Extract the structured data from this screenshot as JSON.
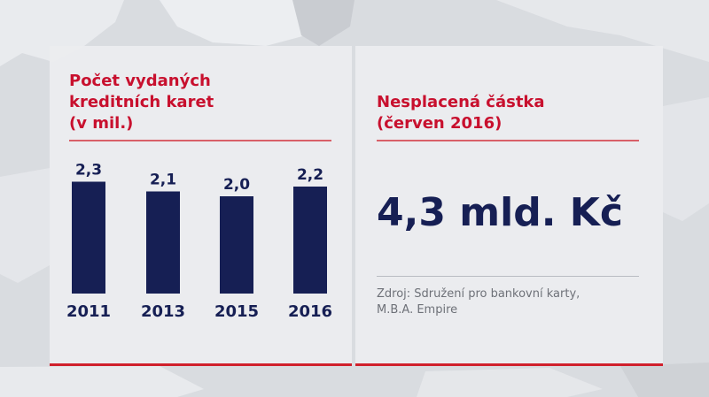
{
  "left_panel": {
    "title_lines": [
      "Počet vydaných",
      "kreditních karet",
      "(v mil.)"
    ]
  },
  "chart_data": {
    "type": "bar",
    "title": "Počet vydaných kreditních karet (v mil.)",
    "categories": [
      "2011",
      "2013",
      "2015",
      "2016"
    ],
    "values": [
      2.3,
      2.1,
      2.0,
      2.2
    ],
    "value_labels": [
      "2,3",
      "2,1",
      "2,0",
      "2,2"
    ],
    "bar_color": "#161f54",
    "grid": false,
    "legend": "none"
  },
  "right_panel": {
    "title_lines": [
      "Nesplacená částka",
      "(červen 2016)"
    ],
    "value": "4,3 mld. Kč",
    "source_lines": [
      "Zdroj: Sdružení pro bankovní karty,",
      "M.B.A. Empire"
    ]
  },
  "colors": {
    "accent_red": "#c8102e",
    "navy": "#161f54",
    "panel_bg": "#ecedef"
  }
}
